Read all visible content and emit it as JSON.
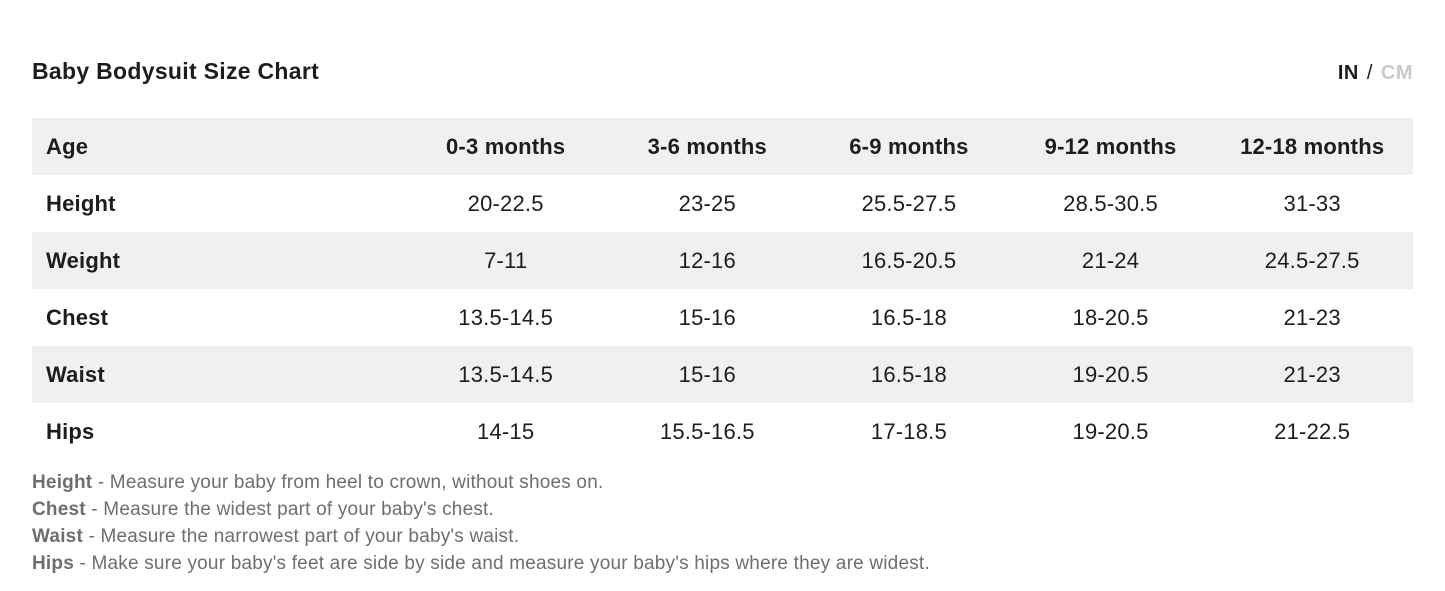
{
  "header": {
    "title": "Baby Bodysuit Size Chart",
    "unit_toggle": {
      "in_label": "IN",
      "separator": "/",
      "cm_label": "CM",
      "selected_unit": "IN"
    }
  },
  "table": {
    "header_row": {
      "label": "Age",
      "columns": [
        "0-3 months",
        "3-6 months",
        "6-9 months",
        "9-12 months",
        "12-18 months"
      ]
    },
    "rows": [
      {
        "label": "Height",
        "values": [
          "20-22.5",
          "23-25",
          "25.5-27.5",
          "28.5-30.5",
          "31-33"
        ]
      },
      {
        "label": "Weight",
        "values": [
          "7-11",
          "12-16",
          "16.5-20.5",
          "21-24",
          "24.5-27.5"
        ]
      },
      {
        "label": "Chest",
        "values": [
          "13.5-14.5",
          "15-16",
          "16.5-18",
          "18-20.5",
          "21-23"
        ]
      },
      {
        "label": "Waist",
        "values": [
          "13.5-14.5",
          "15-16",
          "16.5-18",
          "19-20.5",
          "21-23"
        ]
      },
      {
        "label": "Hips",
        "values": [
          "14-15",
          "15.5-16.5",
          "17-18.5",
          "19-20.5",
          "21-22.5"
        ]
      }
    ]
  },
  "notes": [
    {
      "term": "Height",
      "text": "- Measure your baby from heel to crown, without shoes on."
    },
    {
      "term": "Chest",
      "text": "- Measure the widest part of your baby's chest."
    },
    {
      "term": "Waist",
      "text": "- Measure the narrowest part of your baby's waist."
    },
    {
      "term": "Hips",
      "text": "- Make sure your baby's feet are side by side and measure your baby's hips where they are widest."
    }
  ],
  "colors": {
    "text_dark": "#1d1d1d",
    "row_stripe": "#f0f0f0",
    "note_gray": "#6e6e6e",
    "unit_inactive": "#c9c9c9"
  }
}
